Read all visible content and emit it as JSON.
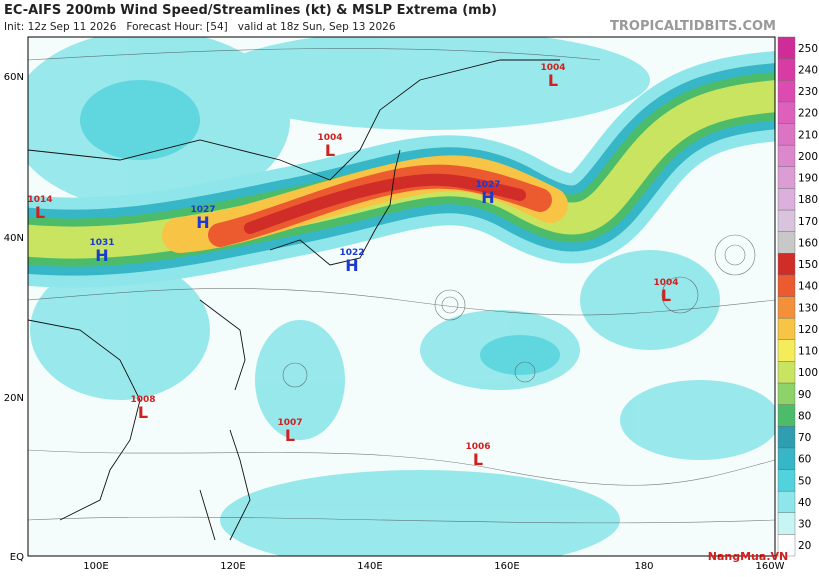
{
  "header": {
    "title": "EC-AIFS 200mb Wind Speed/Streamlines (kt) & MSLP Extrema (mb)",
    "subtitle": "Init: 12z Sep 11 2026   Forecast Hour: [54]   valid at 18z Sun, Sep 13 2026",
    "site": "TROPICALTIDBITS.COM"
  },
  "map": {
    "lat_labels": [
      "60N",
      "40N",
      "20N",
      "EQ"
    ],
    "lon_labels": [
      "100E",
      "120E",
      "140E",
      "160E",
      "180",
      "160W"
    ],
    "systems": [
      {
        "letter": "L",
        "value": "1004"
      },
      {
        "letter": "L",
        "value": "1004"
      },
      {
        "letter": "L",
        "value": "1014"
      },
      {
        "letter": "H",
        "value": "1027"
      },
      {
        "letter": "H",
        "value": "1031"
      },
      {
        "letter": "H",
        "value": "1027"
      },
      {
        "letter": "H",
        "value": "1022"
      },
      {
        "letter": "L",
        "value": "1004"
      },
      {
        "letter": "L",
        "value": "1008"
      },
      {
        "letter": "L",
        "value": "1007"
      },
      {
        "letter": "L",
        "value": "1006"
      }
    ]
  },
  "colorbar": {
    "ticks": [
      20,
      30,
      40,
      50,
      60,
      70,
      80,
      90,
      100,
      110,
      120,
      130,
      140,
      150,
      160,
      170,
      180,
      190,
      200,
      210,
      220,
      230,
      240,
      250
    ],
    "colors": [
      "#ffffff",
      "#c8f4f4",
      "#8ee6ea",
      "#52d2dc",
      "#36b6c6",
      "#2e9eb0",
      "#4cbc6a",
      "#8cd46a",
      "#c8e460",
      "#f4ec5a",
      "#f8c446",
      "#f4903a",
      "#ec5a30",
      "#d02c28",
      "#c8c8c8",
      "#d8c4dc",
      "#dcb0dc",
      "#dc9cd4",
      "#dc88cc",
      "#dc74c4",
      "#dc60bc",
      "#dc4cb0",
      "#d83ca4",
      "#d02c98"
    ]
  },
  "watermark": "NangMua.VN"
}
